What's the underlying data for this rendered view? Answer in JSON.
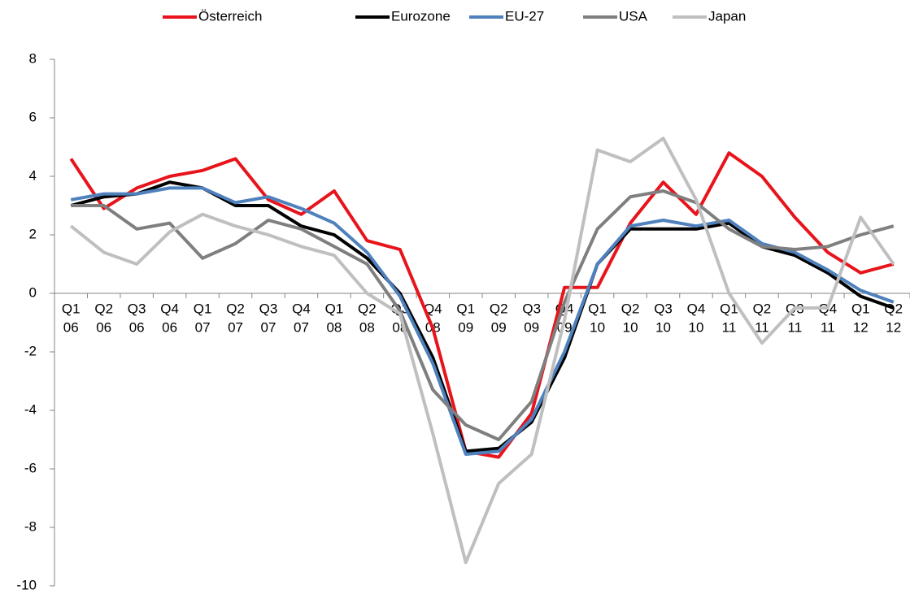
{
  "chart_data": {
    "type": "line",
    "categories": [
      [
        "Q1",
        "06"
      ],
      [
        "Q2",
        "06"
      ],
      [
        "Q3",
        "06"
      ],
      [
        "Q4",
        "06"
      ],
      [
        "Q1",
        "07"
      ],
      [
        "Q2",
        "07"
      ],
      [
        "Q3",
        "07"
      ],
      [
        "Q4",
        "07"
      ],
      [
        "Q1",
        "08"
      ],
      [
        "Q2",
        "08"
      ],
      [
        "Q3",
        "08"
      ],
      [
        "Q4",
        "08"
      ],
      [
        "Q1",
        "09"
      ],
      [
        "Q2",
        "09"
      ],
      [
        "Q3",
        "09"
      ],
      [
        "Q4",
        "09"
      ],
      [
        "Q1",
        "10"
      ],
      [
        "Q2",
        "10"
      ],
      [
        "Q3",
        "10"
      ],
      [
        "Q4",
        "10"
      ],
      [
        "Q1",
        "11"
      ],
      [
        "Q2",
        "11"
      ],
      [
        "Q3",
        "11"
      ],
      [
        "Q4",
        "11"
      ],
      [
        "Q1",
        "12"
      ],
      [
        "Q2",
        "12"
      ]
    ],
    "series": [
      {
        "name": "Österreich",
        "color": "#e8141c",
        "values": [
          4.6,
          2.9,
          3.6,
          4.0,
          4.2,
          4.6,
          3.2,
          2.7,
          3.5,
          1.8,
          1.5,
          -1.2,
          -5.4,
          -5.6,
          -4.1,
          0.2,
          0.2,
          2.4,
          3.8,
          2.7,
          4.8,
          4.0,
          2.6,
          1.4,
          0.7,
          1.0
        ]
      },
      {
        "name": "Eurozone",
        "color": "#000000",
        "values": [
          3.0,
          3.3,
          3.4,
          3.8,
          3.6,
          3.0,
          3.0,
          2.3,
          2.0,
          1.2,
          0.0,
          -2.2,
          -5.4,
          -5.3,
          -4.4,
          -2.2,
          1.0,
          2.2,
          2.2,
          2.2,
          2.4,
          1.6,
          1.3,
          0.7,
          -0.1,
          -0.5
        ]
      },
      {
        "name": "EU-27",
        "color": "#4f81bd",
        "values": [
          3.2,
          3.4,
          3.4,
          3.6,
          3.6,
          3.1,
          3.3,
          2.9,
          2.4,
          1.4,
          -0.1,
          -2.4,
          -5.5,
          -5.4,
          -4.3,
          -2.0,
          1.0,
          2.3,
          2.5,
          2.3,
          2.5,
          1.7,
          1.4,
          0.8,
          0.1,
          -0.3
        ]
      },
      {
        "name": "USA",
        "color": "#7f7f7f",
        "values": [
          3.0,
          3.0,
          2.2,
          2.4,
          1.2,
          1.7,
          2.5,
          2.2,
          1.6,
          1.0,
          -0.6,
          -3.3,
          -4.5,
          -5.0,
          -3.7,
          -0.3,
          2.2,
          3.3,
          3.5,
          3.1,
          2.2,
          1.6,
          1.5,
          1.6,
          2.0,
          2.3
        ]
      },
      {
        "name": "Japan",
        "color": "#bfbfbf",
        "values": [
          2.3,
          1.4,
          1.0,
          2.1,
          2.7,
          2.3,
          2.0,
          1.6,
          1.3,
          0.0,
          -0.7,
          -4.8,
          -9.2,
          -6.5,
          -5.5,
          -0.9,
          4.9,
          4.5,
          5.3,
          3.2,
          0.0,
          -1.7,
          -0.5,
          -0.5,
          2.6,
          1.0
        ]
      }
    ],
    "ylim": [
      -10,
      8
    ],
    "yticks": [
      -10,
      -8,
      -6,
      -4,
      -2,
      0,
      2,
      4,
      6,
      8
    ],
    "legend": "top"
  }
}
